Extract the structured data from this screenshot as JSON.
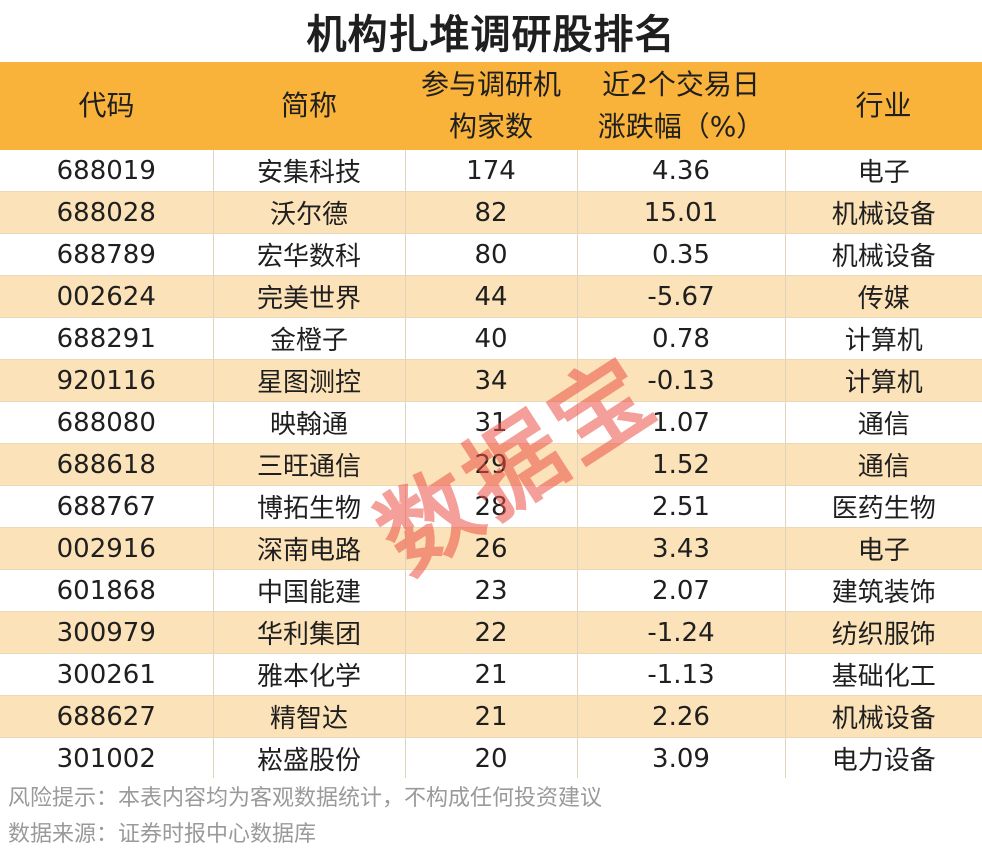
{
  "title": "机构扎堆调研股排名",
  "header": {
    "code": "代码",
    "name": "简称",
    "inst_line1": "参与调研机",
    "inst_line2": "构家数",
    "chg_line1": "近2个交易日",
    "chg_line2": "涨跌幅（%）",
    "industry": "行业"
  },
  "rows": [
    {
      "code": "688019",
      "name": "安集科技",
      "inst": "174",
      "chg": "4.36",
      "industry": "电子"
    },
    {
      "code": "688028",
      "name": "沃尔德",
      "inst": "82",
      "chg": "15.01",
      "industry": "机械设备"
    },
    {
      "code": "688789",
      "name": "宏华数科",
      "inst": "80",
      "chg": "0.35",
      "industry": "机械设备"
    },
    {
      "code": "002624",
      "name": "完美世界",
      "inst": "44",
      "chg": "-5.67",
      "industry": "传媒"
    },
    {
      "code": "688291",
      "name": "金橙子",
      "inst": "40",
      "chg": "0.78",
      "industry": "计算机"
    },
    {
      "code": "920116",
      "name": "星图测控",
      "inst": "34",
      "chg": "-0.13",
      "industry": "计算机"
    },
    {
      "code": "688080",
      "name": "映翰通",
      "inst": "31",
      "chg": "1.07",
      "industry": "通信"
    },
    {
      "code": "688618",
      "name": "三旺通信",
      "inst": "29",
      "chg": "1.52",
      "industry": "通信"
    },
    {
      "code": "688767",
      "name": "博拓生物",
      "inst": "28",
      "chg": "2.51",
      "industry": "医药生物"
    },
    {
      "code": "002916",
      "name": "深南电路",
      "inst": "26",
      "chg": "3.43",
      "industry": "电子"
    },
    {
      "code": "601868",
      "name": "中国能建",
      "inst": "23",
      "chg": "2.07",
      "industry": "建筑装饰"
    },
    {
      "code": "300979",
      "name": "华利集团",
      "inst": "22",
      "chg": "-1.24",
      "industry": "纺织服饰"
    },
    {
      "code": "300261",
      "name": "雅本化学",
      "inst": "21",
      "chg": "-1.13",
      "industry": "基础化工"
    },
    {
      "code": "688627",
      "name": "精智达",
      "inst": "21",
      "chg": "2.26",
      "industry": "机械设备"
    },
    {
      "code": "301002",
      "name": "崧盛股份",
      "inst": "20",
      "chg": "3.09",
      "industry": "电力设备"
    }
  ],
  "footer": {
    "risk": "风险提示：本表内容均为客观数据统计，不构成任何投资建议",
    "source": "数据来源：证券时报中心数据库"
  },
  "watermark": "数据宝",
  "colors": {
    "header_bg": "#f9b23a",
    "stripe_bg": "#fbe2b8",
    "watermark": "#eb5046"
  }
}
